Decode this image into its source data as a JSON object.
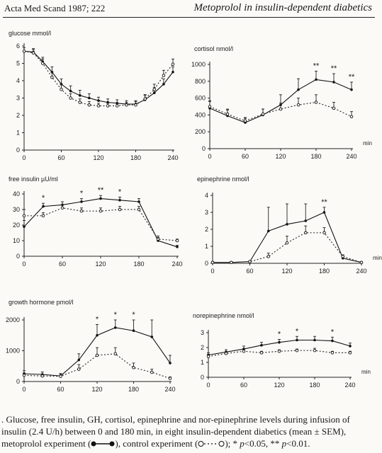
{
  "header": {
    "journal": "Acta Med Scand 1987; 222",
    "title": "Metoprolol in insulin-dependent diabetics"
  },
  "caption": {
    "line1": ". Glucose, free insulin, GH, cortisol, epinephrine and nor-epinephrine levels during infusion of",
    "line2": "insulin (2.4 U/h) between 0 and 180 min, in eight insulin-dependent diabetics (mean ± SEM),",
    "line3a": "metoprolol experiment (",
    "line3b": "), control experiment (",
    "line3c": "); * ",
    "p05": "p",
    "line3d": "<0.05, ** ",
    "p01": "p",
    "line3e": "<0.01."
  },
  "chart_data": [
    {
      "type": "line",
      "title": "glucose mmol/l",
      "xlabel": "",
      "x_ticks": [
        0,
        60,
        120,
        180,
        240
      ],
      "ylim": [
        0,
        6
      ],
      "y_ticks": [
        0,
        1,
        2,
        3,
        4,
        5,
        6
      ],
      "x": [
        0,
        15,
        30,
        45,
        60,
        75,
        90,
        105,
        120,
        135,
        150,
        165,
        180,
        195,
        210,
        225,
        240
      ],
      "series": [
        {
          "style": "solid",
          "marker": "filled",
          "values": [
            5.7,
            5.65,
            5.1,
            4.5,
            3.8,
            3.4,
            3.15,
            3.0,
            2.85,
            2.75,
            2.7,
            2.65,
            2.65,
            2.9,
            3.3,
            3.8,
            4.5
          ],
          "err": [
            0.2,
            0.2,
            0.25,
            0.3,
            0.3,
            0.3,
            0.3,
            0.25,
            0.2,
            0.2,
            0.2,
            0.2,
            0.2,
            0.25,
            0.3,
            0.3,
            0.3
          ]
        },
        {
          "style": "dashed",
          "marker": "open",
          "values": [
            5.7,
            5.6,
            5.0,
            4.2,
            3.5,
            3.0,
            2.75,
            2.6,
            2.55,
            2.55,
            2.55,
            2.6,
            2.6,
            2.95,
            3.5,
            4.3,
            4.95
          ],
          "err": [
            0.2,
            0.2,
            0.25,
            0.3,
            0.3,
            0.25,
            0.2,
            0.2,
            0.15,
            0.15,
            0.15,
            0.15,
            0.2,
            0.25,
            0.3,
            0.3,
            0.3
          ]
        }
      ],
      "significance": []
    },
    {
      "type": "line",
      "title": "cortisol nmol/l",
      "xlabel": "min",
      "x_ticks": [
        0,
        60,
        120,
        180,
        240
      ],
      "ylim": [
        0,
        1000
      ],
      "y_ticks": [
        0,
        200,
        400,
        600,
        800,
        1000
      ],
      "x": [
        0,
        30,
        60,
        90,
        120,
        150,
        180,
        210,
        240
      ],
      "series": [
        {
          "style": "solid",
          "marker": "filled",
          "values": [
            480,
            390,
            310,
            400,
            520,
            700,
            820,
            790,
            700
          ],
          "err": [
            80,
            70,
            50,
            70,
            120,
            130,
            100,
            100,
            90
          ]
        },
        {
          "style": "dashed",
          "marker": "open",
          "values": [
            500,
            410,
            330,
            410,
            470,
            520,
            550,
            480,
            380
          ],
          "err": [
            70,
            60,
            40,
            60,
            70,
            80,
            90,
            70,
            60
          ]
        }
      ],
      "significance": [
        {
          "x": 180,
          "label": "**"
        },
        {
          "x": 210,
          "label": "**"
        },
        {
          "x": 240,
          "label": "**"
        }
      ]
    },
    {
      "type": "line",
      "title": "free insulin µU/ml",
      "xlabel": "",
      "x_ticks": [
        0,
        60,
        120,
        180,
        240
      ],
      "ylim": [
        0,
        40
      ],
      "y_ticks": [
        0,
        10,
        20,
        30,
        40
      ],
      "x": [
        0,
        30,
        60,
        90,
        120,
        150,
        180,
        210,
        240
      ],
      "series": [
        {
          "style": "solid",
          "marker": "filled",
          "values": [
            19,
            32,
            33,
            35,
            37,
            36,
            35,
            10,
            6
          ],
          "err": [
            4,
            2,
            2,
            2,
            2,
            2,
            2,
            2,
            1
          ]
        },
        {
          "style": "dashed",
          "marker": "open",
          "values": [
            26,
            26,
            31,
            29,
            29,
            30,
            30,
            11,
            10
          ],
          "err": [
            4,
            2,
            2,
            2,
            2,
            2,
            2,
            2,
            1
          ]
        }
      ],
      "significance": [
        {
          "x": 30,
          "label": "*"
        },
        {
          "x": 90,
          "label": "*"
        },
        {
          "x": 120,
          "label": "**"
        },
        {
          "x": 150,
          "label": "*"
        }
      ]
    },
    {
      "type": "line",
      "title": "epinephrine nmol/l",
      "xlabel": "min",
      "x_ticks": [
        0,
        60,
        120,
        180,
        240
      ],
      "ylim": [
        0,
        4
      ],
      "y_ticks": [
        0,
        1,
        2,
        3,
        4
      ],
      "x": [
        0,
        30,
        60,
        90,
        120,
        150,
        180,
        210,
        240
      ],
      "series": [
        {
          "style": "solid",
          "marker": "filled",
          "values": [
            0.05,
            0.05,
            0.1,
            1.9,
            2.3,
            2.5,
            3.0,
            0.3,
            0.05
          ],
          "err": [
            0.05,
            0.05,
            0.05,
            1.4,
            1.2,
            1.0,
            0.3,
            0.1,
            0.05
          ]
        },
        {
          "style": "dashed",
          "marker": "open",
          "values": [
            0.05,
            0.05,
            0.1,
            0.4,
            1.2,
            1.8,
            1.8,
            0.4,
            0.05
          ],
          "err": [
            0.05,
            0.05,
            0.05,
            0.2,
            0.4,
            0.4,
            0.3,
            0.1,
            0.05
          ]
        }
      ],
      "significance": [
        {
          "x": 180,
          "label": "**"
        }
      ]
    },
    {
      "type": "line",
      "title": "growth hormone pmol/l",
      "xlabel": "",
      "x_ticks": [
        0,
        60,
        120,
        180,
        240
      ],
      "ylim": [
        0,
        2000
      ],
      "y_ticks": [
        0,
        1000,
        2000
      ],
      "x": [
        0,
        30,
        60,
        90,
        120,
        150,
        180,
        210,
        240
      ],
      "series": [
        {
          "style": "solid",
          "marker": "filled",
          "values": [
            250,
            230,
            180,
            700,
            1500,
            1750,
            1650,
            1450,
            600
          ],
          "err": [
            100,
            80,
            80,
            200,
            350,
            400,
            450,
            550,
            250
          ]
        },
        {
          "style": "dashed",
          "marker": "open",
          "values": [
            200,
            180,
            170,
            400,
            850,
            900,
            450,
            300,
            100
          ],
          "err": [
            80,
            60,
            60,
            150,
            250,
            200,
            150,
            100,
            50
          ]
        }
      ],
      "significance": [
        {
          "x": 120,
          "label": "*"
        },
        {
          "x": 150,
          "label": "*"
        },
        {
          "x": 180,
          "label": "*"
        }
      ]
    },
    {
      "type": "line",
      "title": "norepinephrine nmol/l",
      "xlabel": "min",
      "x_ticks": [
        0,
        60,
        120,
        180,
        240
      ],
      "ylim": [
        0,
        3
      ],
      "y_ticks": [
        0,
        1,
        2,
        3
      ],
      "x": [
        0,
        30,
        60,
        90,
        120,
        150,
        180,
        210,
        240
      ],
      "series": [
        {
          "style": "solid",
          "marker": "filled",
          "values": [
            1.5,
            1.7,
            1.9,
            2.15,
            2.35,
            2.5,
            2.5,
            2.45,
            2.1
          ],
          "err": [
            0.15,
            0.15,
            0.2,
            0.2,
            0.2,
            0.25,
            0.25,
            0.25,
            0.2
          ]
        },
        {
          "style": "dashed",
          "marker": "open",
          "values": [
            1.4,
            1.6,
            1.75,
            1.65,
            1.75,
            1.8,
            1.8,
            1.65,
            1.65
          ],
          "err": [
            0.15,
            0.1,
            0.15,
            0.1,
            0.1,
            0.1,
            0.15,
            0.1,
            0.1
          ]
        }
      ],
      "significance": [
        {
          "x": 120,
          "label": "*"
        },
        {
          "x": 150,
          "label": "*"
        },
        {
          "x": 210,
          "label": "*"
        }
      ]
    }
  ]
}
